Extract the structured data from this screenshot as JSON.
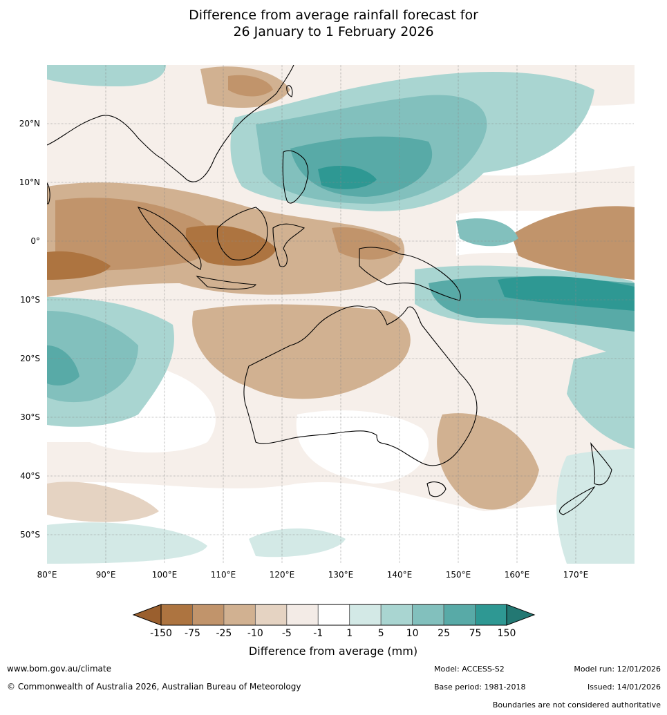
{
  "title": {
    "line1": "Difference from average rainfall forecast for",
    "line2": "26 January to 1 February 2026"
  },
  "map": {
    "lat_ticks": [
      "20°N",
      "10°N",
      "0°",
      "10°S",
      "20°S",
      "30°S",
      "40°S",
      "50°S"
    ],
    "lon_ticks": [
      "80°E",
      "90°E",
      "100°E",
      "110°E",
      "120°E",
      "130°E",
      "140°E",
      "150°E",
      "160°E",
      "170°E"
    ]
  },
  "legend": {
    "title": "Difference from average (mm)",
    "tick_labels": [
      "-150",
      "-75",
      "-25",
      "-10",
      "-5",
      "-1",
      "1",
      "5",
      "10",
      "25",
      "75",
      "150"
    ],
    "colors": [
      "#9a5f2e",
      "#ad7440",
      "#c1946b",
      "#d1b191",
      "#e5d3c2",
      "#f3ebe6",
      "#ffffff",
      "#d3e9e6",
      "#a9d5d1",
      "#82c0bd",
      "#58aaa7",
      "#2e9893",
      "#237873"
    ]
  },
  "footer": {
    "website": "www.bom.gov.au/climate",
    "copyright": "© Commonwealth of Australia 2026, Australian Bureau of Meteorology",
    "model": "Model: ACCESS-S2",
    "model_run": "Model run: 12/01/2026",
    "base_period": "Base period: 1981-2018",
    "issued": "Issued: 14/01/2026",
    "disclaimer": "Boundaries are not considered authoritative"
  }
}
